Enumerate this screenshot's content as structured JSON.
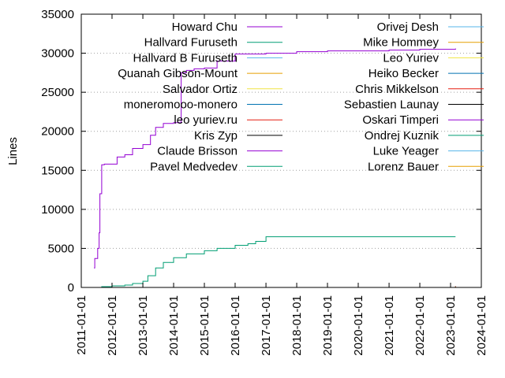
{
  "chart_data": {
    "type": "line",
    "ylabel": "Lines",
    "xlim": [
      "2011-01-01",
      "2024-01-01"
    ],
    "ylim": [
      0,
      35000
    ],
    "y_ticks": [
      0,
      5000,
      10000,
      15000,
      20000,
      25000,
      30000,
      35000
    ],
    "x_ticks": [
      "2011-01-01",
      "2012-01-01",
      "2013-01-01",
      "2014-01-01",
      "2015-01-01",
      "2016-01-01",
      "2017-01-01",
      "2018-01-01",
      "2019-01-01",
      "2020-01-01",
      "2021-01-01",
      "2022-01-01",
      "2023-01-01",
      "2024-01-01"
    ],
    "grid": "horizontal dotted",
    "legend_placement": "top, two columns",
    "series": [
      {
        "name": "Howard Chu",
        "color": "#9400d3",
        "x": [
          "2011-06-01",
          "2011-06-10",
          "2011-07-01",
          "2011-07-15",
          "2011-08-01",
          "2011-08-10",
          "2011-09-01",
          "2011-10-01",
          "2012-01-01",
          "2012-03-01",
          "2012-06-01",
          "2012-09-01",
          "2013-01-01",
          "2013-04-01",
          "2013-06-01",
          "2013-09-01",
          "2014-01-01",
          "2014-04-01",
          "2014-06-01",
          "2014-09-01",
          "2015-01-01",
          "2015-06-01",
          "2016-01-01",
          "2017-01-01",
          "2018-01-01",
          "2019-01-01",
          "2020-01-01",
          "2021-01-01",
          "2022-01-01",
          "2023-01-01",
          "2023-03-01"
        ],
        "values": [
          2500,
          3700,
          3700,
          5000,
          7000,
          12000,
          15700,
          15800,
          15800,
          16700,
          17000,
          17800,
          18300,
          19500,
          20500,
          21000,
          21100,
          27500,
          27800,
          28000,
          28100,
          29000,
          29900,
          30000,
          30200,
          30300,
          30300,
          30400,
          30500,
          30500,
          30600
        ]
      },
      {
        "name": "Hallvard Furuseth",
        "color": "#009e73",
        "x": [
          "2011-06-01",
          "2011-09-01",
          "2012-01-01",
          "2012-06-01",
          "2012-09-01",
          "2013-01-01",
          "2013-03-01",
          "2013-06-01",
          "2013-09-01",
          "2014-01-01",
          "2014-06-01",
          "2015-01-01",
          "2015-06-01",
          "2016-01-01",
          "2016-06-01",
          "2016-09-01",
          "2017-01-01",
          "2018-01-01",
          "2019-01-01",
          "2020-01-01",
          "2021-01-01",
          "2022-01-01",
          "2023-03-01"
        ],
        "values": [
          0,
          100,
          200,
          300,
          500,
          800,
          1500,
          2500,
          3200,
          3800,
          4300,
          4700,
          5000,
          5400,
          5600,
          5900,
          6500,
          6500,
          6500,
          6500,
          6500,
          6500,
          6500
        ]
      },
      {
        "name": "Hallvard B Furuseth",
        "color": "#56b4e9",
        "x": [
          "2011-06-01",
          "2023-03-01"
        ],
        "values": [
          0,
          10
        ]
      },
      {
        "name": "Quanah Gibson-Mount",
        "color": "#e69f00",
        "x": [
          "2011-06-01",
          "2023-03-01"
        ],
        "values": [
          0,
          80
        ]
      },
      {
        "name": "Salvador Ortiz",
        "color": "#f0e442",
        "x": [
          "2011-06-01",
          "2023-03-01"
        ],
        "values": [
          0,
          5
        ]
      },
      {
        "name": "moneromooo-monero",
        "color": "#0072b2",
        "x": [
          "2011-06-01",
          "2023-03-01"
        ],
        "values": [
          0,
          30
        ]
      },
      {
        "name": "leo yuriev.ru",
        "color": "#e51e10",
        "x": [
          "2011-06-01",
          "2023-03-01"
        ],
        "values": [
          0,
          20
        ]
      },
      {
        "name": "Kris Zyp",
        "color": "#000000",
        "x": [
          "2011-06-01",
          "2023-03-01"
        ],
        "values": [
          0,
          120
        ]
      },
      {
        "name": "Claude Brisson",
        "color": "#9400d3",
        "x": [
          "2011-06-01",
          "2023-03-01"
        ],
        "values": [
          0,
          10
        ]
      },
      {
        "name": "Pavel Medvedev",
        "color": "#009e73",
        "x": [
          "2011-06-01",
          "2023-03-01"
        ],
        "values": [
          0,
          15
        ]
      },
      {
        "name": "Orivej Desh",
        "color": "#56b4e9",
        "x": [
          "2011-06-01",
          "2023-03-01"
        ],
        "values": [
          0,
          10
        ]
      },
      {
        "name": "Mike Hommey",
        "color": "#e69f00",
        "x": [
          "2011-06-01",
          "2023-03-01"
        ],
        "values": [
          0,
          10
        ]
      },
      {
        "name": "Leo Yuriev",
        "color": "#f0e442",
        "x": [
          "2011-06-01",
          "2023-03-01"
        ],
        "values": [
          0,
          20
        ]
      },
      {
        "name": "Heiko Becker",
        "color": "#0072b2",
        "x": [
          "2011-06-01",
          "2023-03-01"
        ],
        "values": [
          0,
          5
        ]
      },
      {
        "name": "Chris Mikkelson",
        "color": "#e51e10",
        "x": [
          "2011-06-01",
          "2020-01-01",
          "2023-03-01"
        ],
        "values": [
          0,
          0,
          150
        ]
      },
      {
        "name": "Sebastien Launay",
        "color": "#000000",
        "x": [
          "2011-06-01",
          "2023-03-01"
        ],
        "values": [
          0,
          5
        ]
      },
      {
        "name": "Oskari Timperi",
        "color": "#9400d3",
        "x": [
          "2011-06-01",
          "2023-03-01"
        ],
        "values": [
          0,
          5
        ]
      },
      {
        "name": "Ondrej Kuznik",
        "color": "#009e73",
        "x": [
          "2011-06-01",
          "2023-03-01"
        ],
        "values": [
          0,
          40
        ]
      },
      {
        "name": "Luke Yeager",
        "color": "#56b4e9",
        "x": [
          "2011-06-01",
          "2023-03-01"
        ],
        "values": [
          0,
          5
        ]
      },
      {
        "name": "Lorenz Bauer",
        "color": "#e69f00",
        "x": [
          "2011-06-01",
          "2023-03-01"
        ],
        "values": [
          0,
          5
        ]
      }
    ]
  }
}
